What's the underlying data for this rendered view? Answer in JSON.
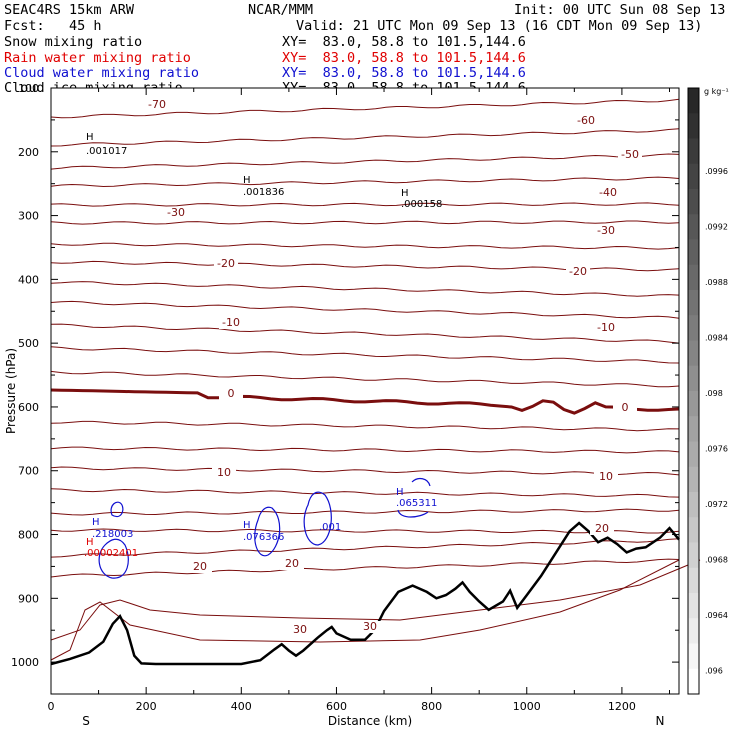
{
  "header": {
    "model": "SEAC4RS 15km ARW",
    "center": "NCAR/MMM",
    "init": "Init: 00 UTC Sun 08 Sep 13",
    "fcst": "Fcst:   45 h",
    "valid": "Valid: 21 UTC Mon 09 Sep 13 (16 CDT Mon 09 Sep 13)",
    "fields": [
      {
        "name": "Snow mixing ratio",
        "xy": "XY=  83.0, 58.8 to 101.5,144.6",
        "color": "#000000"
      },
      {
        "name": "Rain water mixing ratio",
        "xy": "XY=  83.0, 58.8 to 101.5,144.6",
        "color": "#e00000"
      },
      {
        "name": "Cloud water mixing ratio",
        "xy": "XY=  83.0, 58.8 to 101.5,144.6",
        "color": "#1010d0"
      },
      {
        "name": "Cloud ice mixing ratio",
        "xy": "XY=  83.0, 58.8 to 101.5,144.6",
        "color": "#000000"
      }
    ]
  },
  "chart_data": {
    "type": "cross-section contour",
    "xlabel": "Distance (km)",
    "ylabel": "Pressure (hPa)",
    "xlim": [
      0,
      1320
    ],
    "ylim": [
      1050,
      100
    ],
    "x_ticks": [
      "0",
      "200",
      "400",
      "600",
      "800",
      "1000",
      "1200"
    ],
    "y_ticks": [
      "100",
      "200",
      "300",
      "400",
      "500",
      "600",
      "700",
      "800",
      "900",
      "1000"
    ],
    "x_ends": {
      "left": "S",
      "right": "N"
    },
    "temperature_labels": [
      "-70",
      "-60",
      "-50",
      "-40",
      "-30",
      "-30",
      "-20",
      "-20",
      "-10",
      "-10",
      "0",
      "0",
      "10",
      "10",
      "20",
      "20",
      "20",
      "30",
      "30"
    ],
    "maxima": [
      {
        "mark": "H",
        "value": ".001017",
        "color": "#000000"
      },
      {
        "mark": "H",
        "value": ".001836",
        "color": "#000000"
      },
      {
        "mark": "H",
        "value": ".000158",
        "color": "#000000"
      },
      {
        "mark": "H",
        "value": ".218003",
        "color": "#1010d0"
      },
      {
        "mark": "H",
        "value": ".00002401",
        "color": "#e00000"
      },
      {
        "mark": "H",
        "value": ".076366",
        "color": "#1010d0"
      },
      {
        "mark": "H",
        "value": ".065311",
        "color": "#1010d0"
      }
    ],
    "contour_labels": [
      ".001"
    ],
    "colorbar": {
      "unit": "g kg⁻¹",
      "labels": [
        ".0996",
        ".0992",
        ".0988",
        ".0984",
        ".098",
        ".0976",
        ".0972",
        ".0968",
        ".0964",
        ".096"
      ]
    },
    "terrain_profile": {
      "x_km": [
        0,
        40,
        80,
        110,
        130,
        145,
        160,
        175,
        190,
        220,
        300,
        400,
        440,
        470,
        485,
        500,
        515,
        530,
        560,
        580,
        590,
        600,
        630,
        660,
        680,
        700,
        730,
        760,
        790,
        810,
        830,
        850,
        865,
        880,
        900,
        920,
        950,
        965,
        980,
        1000,
        1030,
        1060,
        1090,
        1110,
        1130,
        1150,
        1170,
        1190,
        1210,
        1230,
        1250,
        1280,
        1300,
        1320
      ],
      "p_hpa": [
        1003,
        995,
        985,
        968,
        940,
        928,
        950,
        990,
        1002,
        1003,
        1003,
        1003,
        997,
        980,
        972,
        982,
        990,
        982,
        962,
        950,
        945,
        955,
        965,
        965,
        950,
        920,
        890,
        880,
        890,
        900,
        895,
        885,
        875,
        890,
        905,
        918,
        905,
        888,
        915,
        895,
        865,
        830,
        795,
        782,
        795,
        812,
        805,
        815,
        828,
        822,
        820,
        805,
        790,
        808
      ]
    }
  }
}
